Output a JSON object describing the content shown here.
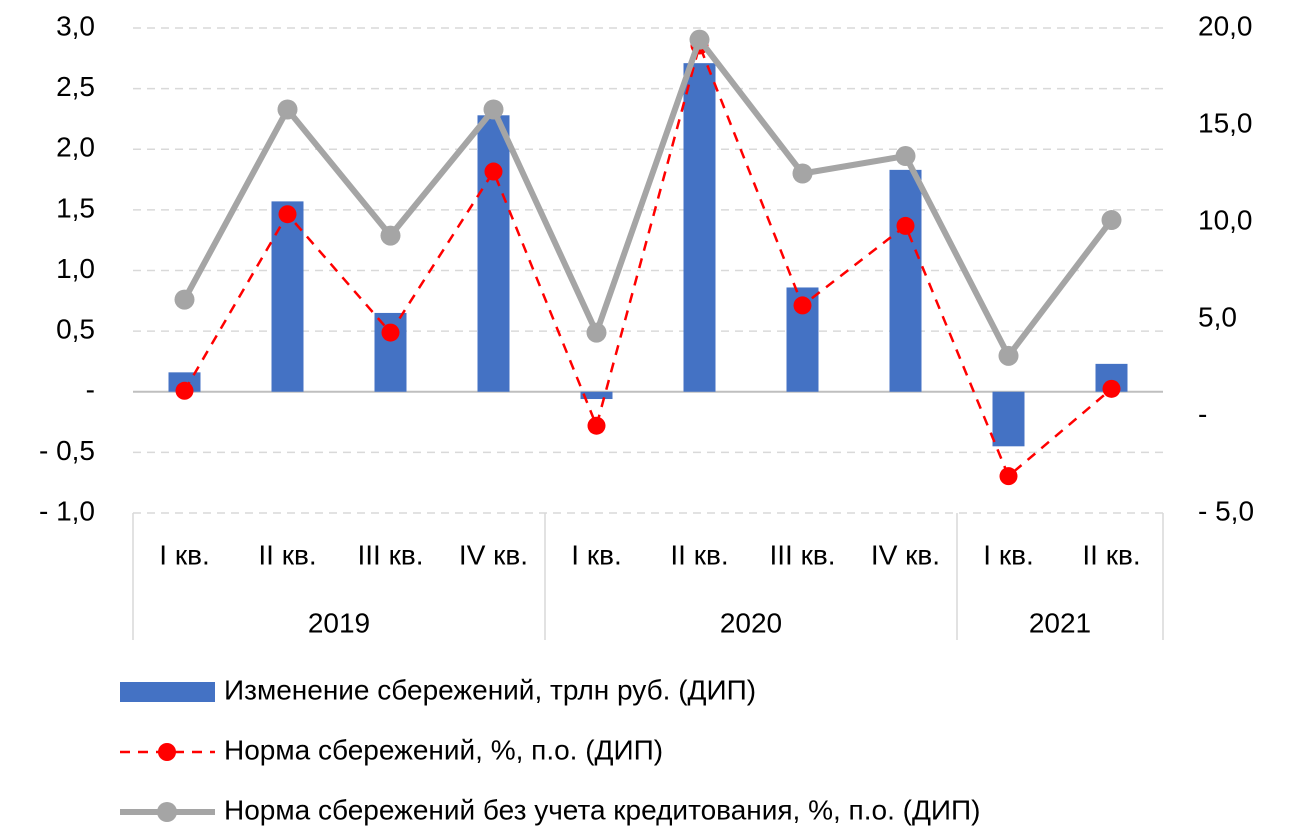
{
  "chart_data": {
    "type": "bar-line",
    "categories": [
      "I кв.",
      "II кв.",
      "III кв.",
      "IV кв.",
      "I кв.",
      "II кв.",
      "III кв.",
      "IV кв.",
      "I кв.",
      "II кв."
    ],
    "year_groups": [
      {
        "label": "2019",
        "count": 4
      },
      {
        "label": "2020",
        "count": 4
      },
      {
        "label": "2021",
        "count": 2
      }
    ],
    "ylim": [
      -1.0,
      3.0
    ],
    "yticks": [
      {
        "value": 3.0,
        "label": "3,0"
      },
      {
        "value": 2.5,
        "label": "2,5"
      },
      {
        "value": 2.0,
        "label": "2,0"
      },
      {
        "value": 1.5,
        "label": "1,5"
      },
      {
        "value": 1.0,
        "label": "1,0"
      },
      {
        "value": 0.5,
        "label": "0,5"
      },
      {
        "value": 0,
        "label": "-"
      },
      {
        "value": -0.5,
        "label": "- 0,5"
      },
      {
        "value": -1.0,
        "label": "- 1,0"
      }
    ],
    "y2lim": [
      -5.0,
      20.0
    ],
    "y2ticks": [
      {
        "value": 20.0,
        "label": "20,0"
      },
      {
        "value": 15.0,
        "label": "15,0"
      },
      {
        "value": 10.0,
        "label": "10,0"
      },
      {
        "value": 5.0,
        "label": "5,0"
      },
      {
        "value": 0,
        "label": "-"
      },
      {
        "value": -5.0,
        "label": "- 5,0"
      }
    ],
    "grid": true,
    "legend": "bottom",
    "series": [
      {
        "name": "Изменение сбережений, трлн руб. (ДИП)",
        "type": "bar",
        "color": "#4472c4",
        "values": [
          0.16,
          1.57,
          0.65,
          2.28,
          -0.06,
          2.71,
          0.86,
          1.83,
          -0.45,
          0.23
        ]
      },
      {
        "name": "Норма сбережений, %, п.о. (ДИП)",
        "type": "dashed-line",
        "axis": "y2",
        "color": "#ff0000",
        "values": [
          1.3,
          10.4,
          4.3,
          12.6,
          -0.5,
          19.1,
          5.7,
          9.8,
          -3.1,
          1.4
        ]
      },
      {
        "name": "Норма сбережений без учета кредитования, %, п.о. (ДИП)",
        "type": "line",
        "axis": "y2",
        "color": "#a5a5a5",
        "values": [
          6.0,
          15.8,
          9.3,
          15.8,
          4.3,
          19.4,
          12.5,
          13.4,
          3.1,
          10.1
        ]
      }
    ]
  }
}
